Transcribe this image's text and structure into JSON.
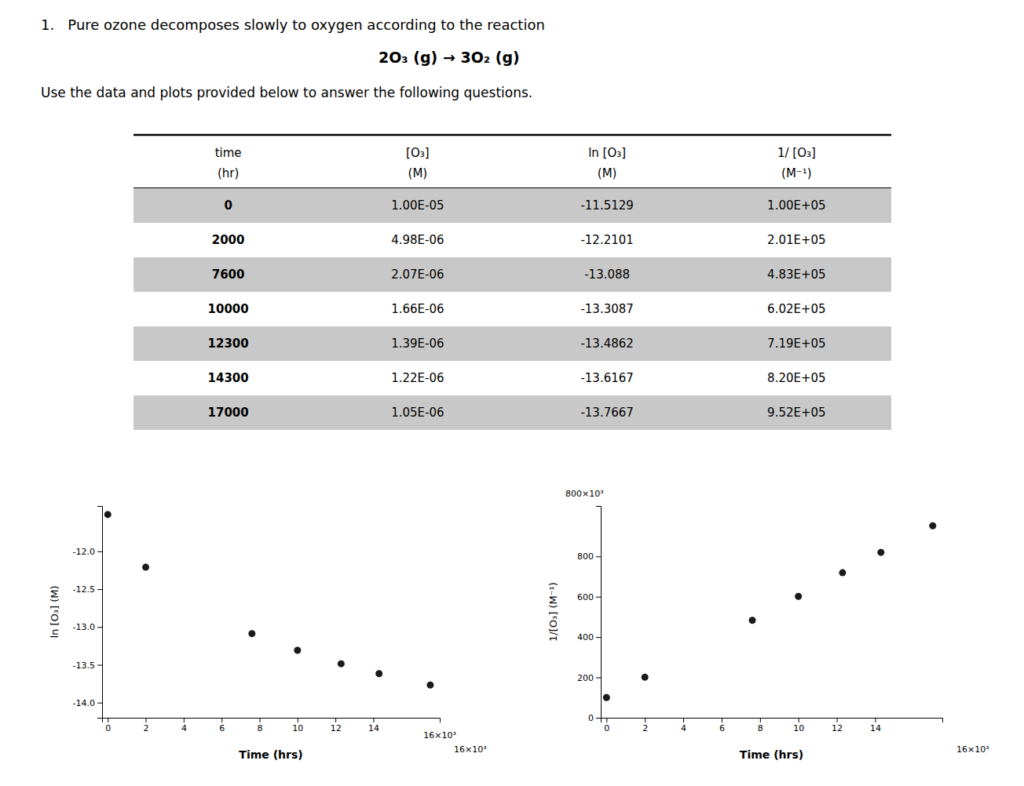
{
  "chart_data": [
    {
      "type": "table",
      "title": "1.   Pure ozone decomposes slowly to oxygen according to the reaction",
      "annotations": [
        "2O₃ (g) → 3O₂ (g)"
      ],
      "subtitle": "Use the data and plots provided below to answer the following questions.",
      "header_rows": [
        [
          "time",
          "[O₃]",
          "ln [O₃]",
          "1/ [O₃]"
        ],
        [
          "(hr)",
          "(M)",
          "(M)",
          "(M⁻¹)"
        ]
      ],
      "rows": [
        [
          "0",
          "1.00E-05",
          "-11.5129",
          "1.00E+05"
        ],
        [
          "2000",
          "4.98E-06",
          "-12.2101",
          "2.01E+05"
        ],
        [
          "7600",
          "2.07E-06",
          "-13.088",
          "4.83E+05"
        ],
        [
          "10000",
          "1.66E-06",
          "-13.3087",
          "6.02E+05"
        ],
        [
          "12300",
          "1.39E-06",
          "-13.4862",
          "7.19E+05"
        ],
        [
          "14300",
          "1.22E-06",
          "-13.6167",
          "8.20E+05"
        ],
        [
          "17000",
          "1.05E-06",
          "-13.7667",
          "9.52E+05"
        ]
      ],
      "color": "#c8c8c8"
    },
    {
      "type": "scatter",
      "x": [
        0,
        2,
        7.6,
        10,
        12.3,
        14.3,
        17
      ],
      "values": [
        -11.5129,
        -12.2101,
        -13.088,
        -13.3087,
        -13.4862,
        -13.6167,
        -13.7667
      ],
      "color": "#1a1a1a",
      "xlabel": "Time (hrs)",
      "ylabel": "ln [O₃] (M)",
      "xlim": [
        -0.3,
        17.5
      ],
      "ylim": [
        -14.2,
        -11.4
      ],
      "xticks": [
        0,
        2,
        4,
        6,
        8,
        10,
        12,
        14
      ],
      "yticks": [
        {
          "value": -14,
          "label": "-14.0"
        },
        -13.5,
        {
          "value": -13,
          "label": "-13.0"
        },
        -12.5,
        {
          "value": -12,
          "label": "-12.0"
        }
      ],
      "grid": false,
      "annotations": [
        "16×10³",
        "16×10³"
      ]
    },
    {
      "type": "scatter",
      "x": [
        0,
        2,
        7.6,
        10,
        12.3,
        14.3,
        17
      ],
      "values": [
        100,
        201,
        483,
        602,
        719,
        820,
        952
      ],
      "color": "#1a1a1a",
      "xlabel": "Time (hrs)",
      "ylabel": "1/[O₃] (M⁻¹)",
      "xlim": [
        -0.3,
        17.5
      ],
      "ylim": [
        0,
        1050
      ],
      "xticks": [
        0,
        2,
        4,
        6,
        8,
        10,
        12,
        14
      ],
      "yticks": [
        0,
        200,
        400,
        600,
        800
      ],
      "grid": false,
      "annotations": [
        "800×10³",
        "16×10³"
      ]
    }
  ]
}
